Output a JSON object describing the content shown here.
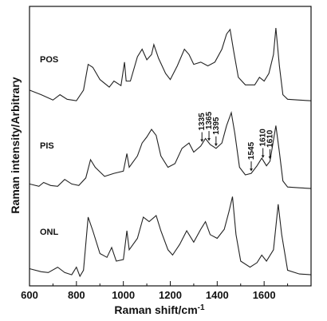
{
  "chart_data": {
    "type": "line",
    "title": "",
    "xlabel": "Raman shift/cm",
    "xlabel_superscript": "-1",
    "ylabel": "Raman intensity/Arbitrary",
    "xlim": [
      600,
      1800
    ],
    "x_ticks": [
      "600",
      "800",
      "1000",
      "1200",
      "1400",
      "1600"
    ],
    "x_tick_values": [
      600,
      800,
      1000,
      1200,
      1400,
      1600
    ],
    "y_ticks_shown": false,
    "grid": false,
    "legend": "none; series names printed at left of each trace",
    "series": [
      {
        "name": "POS",
        "offset": 2,
        "points": [
          [
            600,
            0.18
          ],
          [
            650,
            0.12
          ],
          [
            700,
            0.05
          ],
          [
            730,
            0.12
          ],
          [
            760,
            0.06
          ],
          [
            800,
            0.04
          ],
          [
            830,
            0.18
          ],
          [
            850,
            0.52
          ],
          [
            870,
            0.48
          ],
          [
            900,
            0.32
          ],
          [
            940,
            0.22
          ],
          [
            960,
            0.3
          ],
          [
            990,
            0.24
          ],
          [
            1005,
            0.55
          ],
          [
            1012,
            0.3
          ],
          [
            1030,
            0.3
          ],
          [
            1060,
            0.62
          ],
          [
            1080,
            0.72
          ],
          [
            1100,
            0.58
          ],
          [
            1120,
            0.65
          ],
          [
            1130,
            0.78
          ],
          [
            1150,
            0.6
          ],
          [
            1180,
            0.4
          ],
          [
            1200,
            0.32
          ],
          [
            1230,
            0.5
          ],
          [
            1260,
            0.72
          ],
          [
            1280,
            0.65
          ],
          [
            1300,
            0.52
          ],
          [
            1330,
            0.55
          ],
          [
            1360,
            0.5
          ],
          [
            1390,
            0.55
          ],
          [
            1420,
            0.72
          ],
          [
            1440,
            0.92
          ],
          [
            1455,
            0.98
          ],
          [
            1470,
            0.7
          ],
          [
            1490,
            0.35
          ],
          [
            1520,
            0.25
          ],
          [
            1560,
            0.25
          ],
          [
            1580,
            0.35
          ],
          [
            1600,
            0.3
          ],
          [
            1620,
            0.4
          ],
          [
            1640,
            0.65
          ],
          [
            1650,
            1.0
          ],
          [
            1665,
            0.5
          ],
          [
            1680,
            0.12
          ],
          [
            1700,
            0.06
          ],
          [
            1750,
            0.05
          ],
          [
            1800,
            0.04
          ]
        ]
      },
      {
        "name": "PIS",
        "offset": 1,
        "points": [
          [
            600,
            0.08
          ],
          [
            640,
            0.05
          ],
          [
            660,
            0.1
          ],
          [
            690,
            0.06
          ],
          [
            720,
            0.05
          ],
          [
            750,
            0.14
          ],
          [
            780,
            0.08
          ],
          [
            810,
            0.06
          ],
          [
            840,
            0.16
          ],
          [
            860,
            0.4
          ],
          [
            880,
            0.3
          ],
          [
            920,
            0.18
          ],
          [
            960,
            0.22
          ],
          [
            1000,
            0.25
          ],
          [
            1015,
            0.48
          ],
          [
            1025,
            0.3
          ],
          [
            1060,
            0.45
          ],
          [
            1080,
            0.62
          ],
          [
            1100,
            0.7
          ],
          [
            1120,
            0.8
          ],
          [
            1140,
            0.72
          ],
          [
            1160,
            0.45
          ],
          [
            1190,
            0.3
          ],
          [
            1220,
            0.35
          ],
          [
            1250,
            0.55
          ],
          [
            1280,
            0.62
          ],
          [
            1300,
            0.5
          ],
          [
            1330,
            0.58
          ],
          [
            1350,
            0.68
          ],
          [
            1370,
            0.6
          ],
          [
            1395,
            0.55
          ],
          [
            1420,
            0.62
          ],
          [
            1440,
            0.85
          ],
          [
            1460,
            1.02
          ],
          [
            1475,
            0.75
          ],
          [
            1495,
            0.3
          ],
          [
            1520,
            0.2
          ],
          [
            1545,
            0.22
          ],
          [
            1570,
            0.32
          ],
          [
            1590,
            0.42
          ],
          [
            1610,
            0.32
          ],
          [
            1625,
            0.38
          ],
          [
            1650,
            0.85
          ],
          [
            1665,
            0.5
          ],
          [
            1680,
            0.12
          ],
          [
            1700,
            0.04
          ],
          [
            1750,
            0.03
          ],
          [
            1800,
            0.02
          ]
        ]
      },
      {
        "name": "ONL",
        "offset": 0,
        "points": [
          [
            600,
            0.1
          ],
          [
            650,
            0.06
          ],
          [
            680,
            0.05
          ],
          [
            720,
            0.12
          ],
          [
            750,
            0.05
          ],
          [
            780,
            0.02
          ],
          [
            800,
            0.12
          ],
          [
            815,
            0.0
          ],
          [
            830,
            0.08
          ],
          [
            850,
            0.78
          ],
          [
            870,
            0.6
          ],
          [
            900,
            0.3
          ],
          [
            930,
            0.25
          ],
          [
            950,
            0.38
          ],
          [
            970,
            0.2
          ],
          [
            1000,
            0.22
          ],
          [
            1015,
            0.6
          ],
          [
            1025,
            0.35
          ],
          [
            1060,
            0.5
          ],
          [
            1085,
            0.78
          ],
          [
            1110,
            0.72
          ],
          [
            1140,
            0.8
          ],
          [
            1160,
            0.6
          ],
          [
            1190,
            0.35
          ],
          [
            1210,
            0.28
          ],
          [
            1240,
            0.42
          ],
          [
            1270,
            0.6
          ],
          [
            1300,
            0.45
          ],
          [
            1330,
            0.62
          ],
          [
            1350,
            0.72
          ],
          [
            1370,
            0.55
          ],
          [
            1400,
            0.5
          ],
          [
            1430,
            0.62
          ],
          [
            1450,
            0.85
          ],
          [
            1465,
            1.05
          ],
          [
            1480,
            0.55
          ],
          [
            1500,
            0.2
          ],
          [
            1540,
            0.12
          ],
          [
            1570,
            0.18
          ],
          [
            1590,
            0.28
          ],
          [
            1610,
            0.2
          ],
          [
            1640,
            0.35
          ],
          [
            1660,
            0.95
          ],
          [
            1675,
            0.55
          ],
          [
            1700,
            0.08
          ],
          [
            1750,
            0.03
          ],
          [
            1800,
            0.02
          ]
        ]
      }
    ],
    "annotations": [
      {
        "text": "1335",
        "series": "PIS",
        "x": 1335
      },
      {
        "text": "1365",
        "series": "PIS",
        "x": 1365
      },
      {
        "text": "1395",
        "series": "PIS",
        "x": 1395
      },
      {
        "text": "1545",
        "series": "PIS",
        "x": 1545
      },
      {
        "text": "1610",
        "series": "PIS",
        "x": 1595
      },
      {
        "text": "1610",
        "series": "PIS",
        "x": 1625
      }
    ]
  }
}
